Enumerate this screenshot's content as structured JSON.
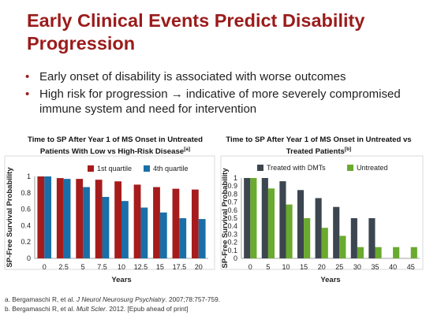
{
  "slide": {
    "title": "Early Clinical Events Predict Disability Progression",
    "bullets": [
      "Early onset of disability is associated with worse outcomes",
      "High risk for progression → indicative of more severely compromised immune system and need for intervention"
    ]
  },
  "chart_data": [
    {
      "type": "bar",
      "title": "Time to SP After Year 1 of MS Onset in Untreated Patients With Low vs High-Risk Disease",
      "title_ref": "[a]",
      "ylabel": "SP-Free Survival Probability",
      "xlabel": "Years",
      "ylim": [
        0,
        1
      ],
      "yticks": [
        "0",
        "0.2",
        "0.4",
        "0.6",
        "0.8",
        "1"
      ],
      "categories": [
        "0",
        "2.5",
        "5",
        "7.5",
        "10",
        "12.5",
        "15",
        "17.5",
        "20"
      ],
      "series": [
        {
          "name": "1st quartile",
          "color": "#a61c1c",
          "values": [
            1,
            0.98,
            0.97,
            0.96,
            0.94,
            0.9,
            0.87,
            0.85,
            0.84
          ]
        },
        {
          "name": "4th quartile",
          "color": "#1a6fa8",
          "values": [
            1,
            0.97,
            0.87,
            0.75,
            0.7,
            0.62,
            0.56,
            0.49,
            0.48
          ]
        }
      ],
      "legend_position": "top",
      "grid": false
    },
    {
      "type": "bar",
      "title": "Time to SP After Year 1 of MS Onset in Untreated vs Treated Patients",
      "title_ref": "[b]",
      "ylabel": "SP-Free Survival Probability",
      "xlabel": "Years",
      "ylim": [
        0,
        1
      ],
      "yticks": [
        "0",
        "0.1",
        "0.2",
        "0.3",
        "0.4",
        "0.5",
        "0.6",
        "0.7",
        "0.8",
        "0.9",
        "1"
      ],
      "categories": [
        "0",
        "5",
        "10",
        "15",
        "20",
        "25",
        "30",
        "35",
        "40",
        "45"
      ],
      "series": [
        {
          "name": "Treated with DMTs",
          "color": "#3c4650",
          "values": [
            1,
            1,
            0.96,
            0.85,
            0.75,
            0.64,
            0.5,
            0.5,
            null,
            null
          ]
        },
        {
          "name": "Untreated",
          "color": "#6aaa2e",
          "values": [
            1,
            0.87,
            0.67,
            0.5,
            0.38,
            0.28,
            0.14,
            0.14,
            0.14,
            0.14
          ]
        }
      ],
      "legend_position": "top",
      "grid": false
    }
  ],
  "references": {
    "a_prefix": "a. Bergamaschi R, et al. ",
    "a_journal": "J Neurol Neurosurg Psychiatry",
    "a_suffix": ". 2007;78:757-759.",
    "b_prefix": "b. Bergamaschi R, et al. ",
    "b_journal": "Mult Scler",
    "b_suffix": ". 2012. [Epub ahead of print]"
  }
}
